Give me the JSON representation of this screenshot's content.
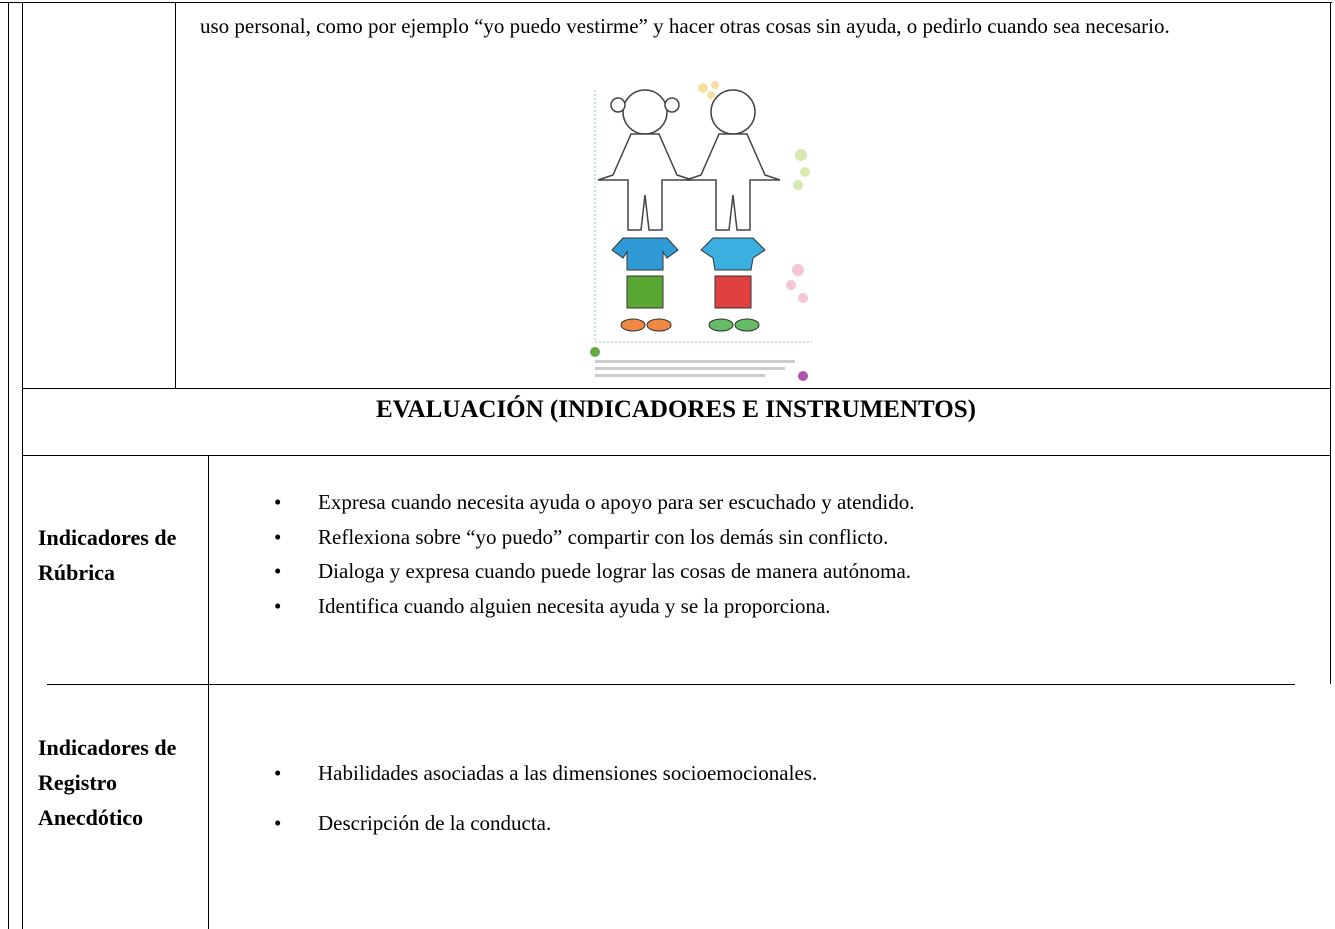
{
  "top_text": "uso personal, como por ejemplo “yo puedo vestirme” y hacer otras cosas sin ayuda, o pedirlo cuando sea necesario.",
  "heading": "EVALUACIÓN (INDICADORES E INSTRUMENTOS)",
  "sections": [
    {
      "label": "Indicadores de Rúbrica",
      "items": [
        "Expresa cuando necesita ayuda o apoyo para ser escuchado y atendido.",
        "Reflexiona sobre “yo puedo” compartir con los demás sin conflicto.",
        "Dialoga y expresa cuando puede lograr las cosas de manera autónoma.",
        "Identifica cuando alguien necesita ayuda y se la proporciona."
      ]
    },
    {
      "label": "Indicadores de Registro Anecdótico",
      "items": [
        "Habilidades asociadas a las dimensiones socioemocionales.",
        "Descripción de la conducta."
      ]
    }
  ]
}
